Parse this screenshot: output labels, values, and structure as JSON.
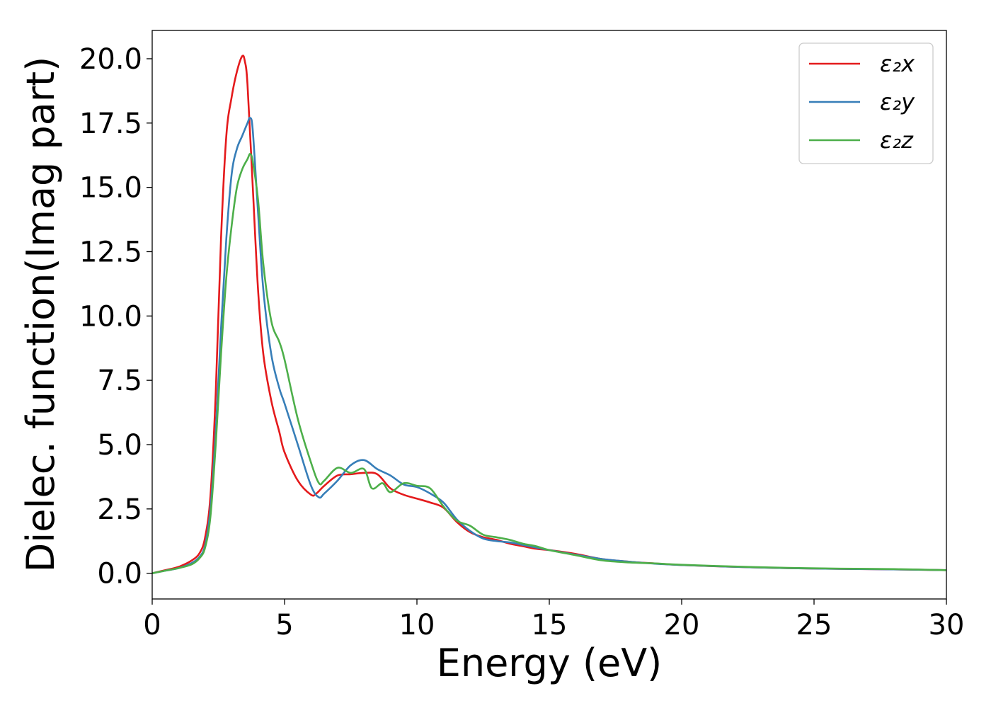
{
  "chart_data": {
    "type": "line",
    "title": "",
    "xlabel": "Energy (eV)",
    "ylabel": "Dielec. function(Imag part)",
    "xlim": [
      0,
      30
    ],
    "ylim": [
      -1.0,
      21.1
    ],
    "xticks": [
      0,
      5,
      10,
      15,
      20,
      25,
      30
    ],
    "xtick_labels": [
      "0",
      "5",
      "10",
      "15",
      "20",
      "25",
      "30"
    ],
    "yticks": [
      0.0,
      2.5,
      5.0,
      7.5,
      10.0,
      12.5,
      15.0,
      17.5,
      20.0
    ],
    "ytick_labels": [
      "0.0",
      "2.5",
      "5.0",
      "7.5",
      "10.0",
      "12.5",
      "15.0",
      "17.5",
      "20.0"
    ],
    "grid": false,
    "legend_position": "top-right",
    "series": [
      {
        "name": "ε₂x",
        "color": "#e41a1c",
        "x": [
          0,
          0.5,
          1.0,
          1.5,
          1.8,
          2.0,
          2.2,
          2.4,
          2.6,
          2.8,
          3.0,
          3.2,
          3.4,
          3.5,
          3.6,
          3.8,
          4.0,
          4.2,
          4.5,
          4.8,
          5.0,
          5.5,
          6.0,
          6.2,
          6.5,
          7.0,
          7.5,
          8.0,
          8.5,
          9.0,
          9.5,
          10.0,
          10.5,
          11.0,
          11.5,
          12.0,
          12.5,
          13.0,
          13.5,
          14.0,
          14.5,
          15.0,
          16.0,
          17.0,
          18.0,
          19.0,
          20.0,
          22.0,
          24.0,
          26.0,
          28.0,
          30.0
        ],
        "y": [
          0.0,
          0.12,
          0.25,
          0.5,
          0.8,
          1.4,
          3.0,
          7.0,
          13.0,
          17.0,
          18.5,
          19.5,
          20.1,
          19.9,
          19.0,
          15.0,
          11.0,
          8.5,
          6.7,
          5.5,
          4.7,
          3.6,
          3.05,
          3.1,
          3.4,
          3.8,
          3.85,
          3.9,
          3.85,
          3.3,
          3.05,
          2.9,
          2.75,
          2.55,
          2.0,
          1.6,
          1.4,
          1.3,
          1.15,
          1.05,
          0.95,
          0.9,
          0.75,
          0.55,
          0.45,
          0.38,
          0.32,
          0.25,
          0.2,
          0.17,
          0.15,
          0.12
        ]
      },
      {
        "name": "ε₂y",
        "color": "#377eb8",
        "x": [
          0,
          0.5,
          1.0,
          1.5,
          1.8,
          2.0,
          2.2,
          2.4,
          2.6,
          2.8,
          3.0,
          3.2,
          3.4,
          3.6,
          3.7,
          3.8,
          4.0,
          4.2,
          4.5,
          4.8,
          5.0,
          5.5,
          6.0,
          6.3,
          6.5,
          7.0,
          7.5,
          8.0,
          8.5,
          9.0,
          9.5,
          10.0,
          10.5,
          11.0,
          11.5,
          12.0,
          12.5,
          13.0,
          13.5,
          14.0,
          14.5,
          15.0,
          16.0,
          17.0,
          18.0,
          19.0,
          20.0,
          22.0,
          24.0,
          26.0,
          28.0,
          30.0
        ],
        "y": [
          0.0,
          0.1,
          0.2,
          0.4,
          0.65,
          1.1,
          2.5,
          5.5,
          9.5,
          13.0,
          15.5,
          16.5,
          17.0,
          17.5,
          17.7,
          17.2,
          14.0,
          11.0,
          8.5,
          7.2,
          6.6,
          5.0,
          3.4,
          2.95,
          3.1,
          3.6,
          4.2,
          4.4,
          4.05,
          3.8,
          3.45,
          3.35,
          3.1,
          2.75,
          2.1,
          1.65,
          1.35,
          1.25,
          1.2,
          1.1,
          1.0,
          0.9,
          0.72,
          0.55,
          0.45,
          0.37,
          0.32,
          0.25,
          0.2,
          0.17,
          0.15,
          0.12
        ]
      },
      {
        "name": "ε₂z",
        "color": "#4daf4a",
        "x": [
          0,
          0.5,
          1.0,
          1.5,
          1.8,
          2.0,
          2.2,
          2.4,
          2.6,
          2.8,
          3.0,
          3.2,
          3.4,
          3.6,
          3.7,
          3.8,
          4.0,
          4.2,
          4.5,
          4.8,
          5.0,
          5.5,
          6.0,
          6.3,
          6.5,
          7.0,
          7.5,
          8.0,
          8.3,
          8.7,
          9.0,
          9.5,
          10.0,
          10.5,
          11.0,
          11.5,
          12.0,
          12.5,
          13.0,
          13.5,
          14.0,
          14.5,
          15.0,
          16.0,
          17.0,
          18.0,
          19.0,
          20.0,
          22.0,
          24.0,
          26.0,
          28.0,
          30.0
        ],
        "y": [
          0.0,
          0.1,
          0.2,
          0.35,
          0.6,
          1.0,
          2.2,
          5.0,
          8.5,
          11.5,
          13.5,
          15.0,
          15.7,
          16.1,
          16.3,
          16.0,
          14.5,
          12.0,
          9.8,
          9.0,
          8.3,
          6.0,
          4.3,
          3.5,
          3.6,
          4.1,
          3.9,
          4.05,
          3.3,
          3.5,
          3.15,
          3.5,
          3.4,
          3.3,
          2.6,
          2.05,
          1.85,
          1.5,
          1.4,
          1.3,
          1.15,
          1.05,
          0.9,
          0.7,
          0.5,
          0.42,
          0.38,
          0.33,
          0.26,
          0.21,
          0.18,
          0.16,
          0.12
        ]
      }
    ]
  }
}
